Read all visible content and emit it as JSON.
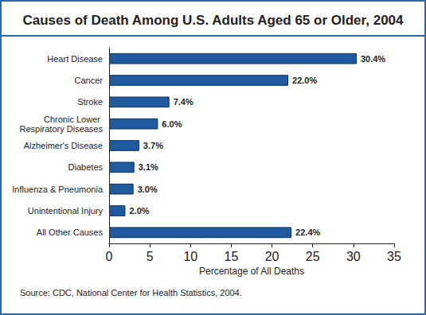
{
  "chart_data": {
    "type": "bar",
    "orientation": "horizontal",
    "title": "Causes of Death Among U.S. Adults Aged 65 or Older, 2004",
    "xlabel": "Percentage of All Deaths",
    "source": "Source: CDC, National Center for Health Statistics, 2004.",
    "categories": [
      "Heart Disease",
      "Cancer",
      "Stroke",
      "Chronic Lower Respiratory Diseases",
      "Alzheimer's Disease",
      "Diabetes",
      "Influenza & Pneumonia",
      "Unintentional Injury",
      "All Other Causes"
    ],
    "values": [
      30.4,
      22.0,
      7.4,
      6.0,
      3.7,
      3.1,
      3.0,
      2.0,
      22.4
    ],
    "value_labels": [
      "30.4%",
      "22.0%",
      "7.4%",
      "6.0%",
      "3.7%",
      "3.1%",
      "3.0%",
      "2.0%",
      "22.4%"
    ],
    "data_labels": true,
    "color": "#1f5a9e",
    "xlim": [
      0,
      35
    ],
    "xticks": [
      0,
      5,
      10,
      15,
      20,
      25,
      30,
      35
    ],
    "grid": false
  }
}
